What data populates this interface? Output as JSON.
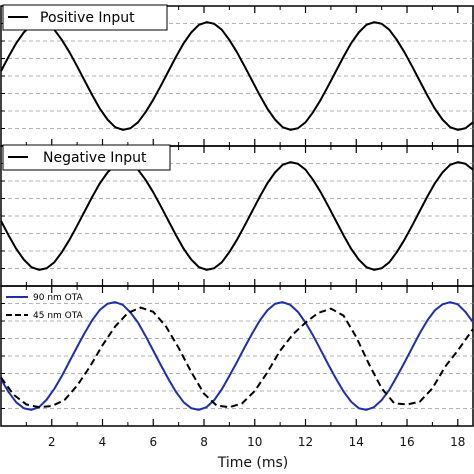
{
  "chart_data": {
    "type": "line",
    "xlabel": "Time (ms)",
    "xlim": [
      0,
      18.6
    ],
    "xticks": [
      2,
      4,
      6,
      8,
      10,
      12,
      14,
      16,
      18
    ],
    "grid": true,
    "panels": [
      {
        "legend_position": "top-left",
        "series": [
          {
            "name": "Positive Input",
            "color": "#000000",
            "style": "solid",
            "x": [
              0,
              0.3,
              0.6,
              0.9,
              1.2,
              1.5,
              1.8,
              2.1,
              2.4,
              2.7,
              3.0,
              3.3,
              3.6,
              3.9,
              4.2,
              4.5,
              4.8,
              5.1,
              5.4,
              5.7,
              6.0,
              6.3,
              6.6,
              6.9,
              7.2,
              7.5,
              7.8,
              8.1,
              8.4,
              8.7,
              9.0,
              9.3,
              9.6,
              9.9,
              10.2,
              10.5,
              10.8,
              11.1,
              11.4,
              11.7,
              12.0,
              12.3,
              12.6,
              12.9,
              13.2,
              13.5,
              13.8,
              14.1,
              14.4,
              14.7,
              15.0,
              15.3,
              15.6,
              15.9,
              16.2,
              16.5,
              16.8,
              17.1,
              17.4,
              17.7,
              18.0,
              18.3,
              18.6
            ],
            "y": [
              0.09,
              0.36,
              0.61,
              0.81,
              0.95,
              1.0,
              0.97,
              0.86,
              0.67,
              0.44,
              0.18,
              -0.09,
              -0.36,
              -0.61,
              -0.81,
              -0.95,
              -1.0,
              -0.97,
              -0.86,
              -0.67,
              -0.44,
              -0.18,
              0.09,
              0.36,
              0.61,
              0.81,
              0.95,
              1.0,
              0.97,
              0.86,
              0.67,
              0.44,
              0.18,
              -0.09,
              -0.36,
              -0.61,
              -0.81,
              -0.95,
              -1.0,
              -0.97,
              -0.86,
              -0.67,
              -0.44,
              -0.18,
              0.09,
              0.36,
              0.61,
              0.81,
              0.95,
              1.0,
              0.97,
              0.86,
              0.67,
              0.44,
              0.18,
              -0.09,
              -0.36,
              -0.61,
              -0.81,
              -0.95,
              -1.0,
              -0.97,
              -0.86
            ]
          }
        ]
      },
      {
        "legend_position": "top-left",
        "series": [
          {
            "name": "Negative Input",
            "color": "#000000",
            "style": "solid",
            "x": [
              0,
              0.3,
              0.6,
              0.9,
              1.2,
              1.5,
              1.8,
              2.1,
              2.4,
              2.7,
              3.0,
              3.3,
              3.6,
              3.9,
              4.2,
              4.5,
              4.8,
              5.1,
              5.4,
              5.7,
              6.0,
              6.3,
              6.6,
              6.9,
              7.2,
              7.5,
              7.8,
              8.1,
              8.4,
              8.7,
              9.0,
              9.3,
              9.6,
              9.9,
              10.2,
              10.5,
              10.8,
              11.1,
              11.4,
              11.7,
              12.0,
              12.3,
              12.6,
              12.9,
              13.2,
              13.5,
              13.8,
              14.1,
              14.4,
              14.7,
              15.0,
              15.3,
              15.6,
              15.9,
              16.2,
              16.5,
              16.8,
              17.1,
              17.4,
              17.7,
              18.0,
              18.3,
              18.6
            ],
            "y": [
              -0.09,
              -0.36,
              -0.61,
              -0.81,
              -0.95,
              -1.0,
              -0.97,
              -0.86,
              -0.67,
              -0.44,
              -0.18,
              0.09,
              0.36,
              0.61,
              0.81,
              0.95,
              1.0,
              0.97,
              0.86,
              0.67,
              0.44,
              0.18,
              -0.09,
              -0.36,
              -0.61,
              -0.81,
              -0.95,
              -1.0,
              -0.97,
              -0.86,
              -0.67,
              -0.44,
              -0.18,
              0.09,
              0.36,
              0.61,
              0.81,
              0.95,
              1.0,
              0.97,
              0.86,
              0.67,
              0.44,
              0.18,
              -0.09,
              -0.36,
              -0.61,
              -0.81,
              -0.95,
              -1.0,
              -0.97,
              -0.86,
              -0.67,
              -0.44,
              -0.18,
              0.09,
              0.36,
              0.61,
              0.81,
              0.95,
              1.0,
              0.97,
              0.86
            ]
          }
        ]
      },
      {
        "legend_position": "top-left",
        "series": [
          {
            "name": "90 nm OTA",
            "color": "#1f2fa8",
            "style": "solid",
            "x": [
              0,
              0.3,
              0.6,
              0.9,
              1.2,
              1.5,
              1.8,
              2.1,
              2.4,
              2.7,
              3.0,
              3.3,
              3.6,
              3.9,
              4.2,
              4.5,
              4.8,
              5.1,
              5.4,
              5.7,
              6.0,
              6.3,
              6.6,
              6.9,
              7.2,
              7.5,
              7.8,
              8.1,
              8.4,
              8.7,
              9.0,
              9.3,
              9.6,
              9.9,
              10.2,
              10.5,
              10.8,
              11.1,
              11.4,
              11.7,
              12.0,
              12.3,
              12.6,
              12.9,
              13.2,
              13.5,
              13.8,
              14.1,
              14.4,
              14.7,
              15.0,
              15.3,
              15.6,
              15.9,
              16.2,
              16.5,
              16.8,
              17.1,
              17.4,
              17.7,
              18.0,
              18.3,
              18.6
            ],
            "y": [
              -0.43,
              -0.67,
              -0.86,
              -0.97,
              -1.0,
              -0.95,
              -0.81,
              -0.61,
              -0.37,
              -0.1,
              0.17,
              0.43,
              0.67,
              0.86,
              0.97,
              1.0,
              0.95,
              0.81,
              0.62,
              0.37,
              0.1,
              -0.17,
              -0.43,
              -0.67,
              -0.86,
              -0.97,
              -1.0,
              -0.95,
              -0.82,
              -0.62,
              -0.37,
              -0.11,
              0.16,
              0.42,
              0.66,
              0.85,
              0.97,
              1.0,
              0.95,
              0.82,
              0.62,
              0.38,
              0.11,
              -0.16,
              -0.42,
              -0.66,
              -0.85,
              -0.97,
              -1.0,
              -0.95,
              -0.82,
              -0.63,
              -0.38,
              -0.12,
              0.15,
              0.42,
              0.66,
              0.85,
              0.96,
              1.0,
              0.96,
              0.82,
              0.63
            ]
          },
          {
            "name": "45 nm OTA",
            "color": "#000000",
            "style": "dashed",
            "x": [
              0,
              0.5,
              1.0,
              1.5,
              2.0,
              2.5,
              3.0,
              3.5,
              4.0,
              4.5,
              5.0,
              5.5,
              6.0,
              6.5,
              7.0,
              7.5,
              8.0,
              8.5,
              9.0,
              9.5,
              10.0,
              10.5,
              11.0,
              11.5,
              12.0,
              12.5,
              13.0,
              13.5,
              14.0,
              14.5,
              15.0,
              15.5,
              16.0,
              16.5,
              17.0,
              17.5,
              18.0,
              18.6
            ],
            "y": [
              -0.4,
              -0.72,
              -0.9,
              -0.95,
              -0.93,
              -0.82,
              -0.55,
              -0.2,
              0.2,
              0.55,
              0.8,
              0.9,
              0.82,
              0.55,
              0.15,
              -0.3,
              -0.7,
              -0.92,
              -0.95,
              -0.88,
              -0.65,
              -0.3,
              0.1,
              0.4,
              0.62,
              0.8,
              0.88,
              0.75,
              0.35,
              -0.15,
              -0.6,
              -0.88,
              -0.9,
              -0.85,
              -0.6,
              -0.2,
              0.1,
              0.5
            ]
          }
        ]
      }
    ]
  }
}
